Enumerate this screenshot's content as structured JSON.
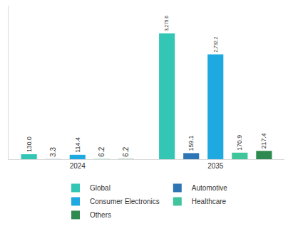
{
  "chart_data": {
    "type": "bar",
    "categories": [
      "2024",
      "2035"
    ],
    "series": [
      {
        "name": "Global",
        "color": "#33c6b5",
        "values": [
          130.0,
          3279.6
        ],
        "value_labels": [
          "130.0",
          "3,279.6"
        ]
      },
      {
        "name": "Automotive",
        "color": "#2e75b6",
        "values": [
          3.3,
          159.1
        ],
        "value_labels": [
          "3.3",
          "159.1"
        ]
      },
      {
        "name": "Consumer Electronics",
        "color": "#1fa9e1",
        "values": [
          114.4,
          2732.2
        ],
        "value_labels": [
          "114.4",
          "2,732.2"
        ]
      },
      {
        "name": "Healthcare",
        "color": "#3fc49c",
        "values": [
          6.2,
          170.9
        ],
        "value_labels": [
          "6.2",
          "170.9"
        ]
      },
      {
        "name": "Others",
        "color": "#2f8a4f",
        "values": [
          6.2,
          217.4
        ],
        "value_labels": [
          "6.2",
          "217.4"
        ]
      }
    ],
    "ylim": [
      0,
      4000
    ],
    "data_labels": true,
    "tick_labels": "x",
    "grid": false,
    "legend": "bottom"
  }
}
